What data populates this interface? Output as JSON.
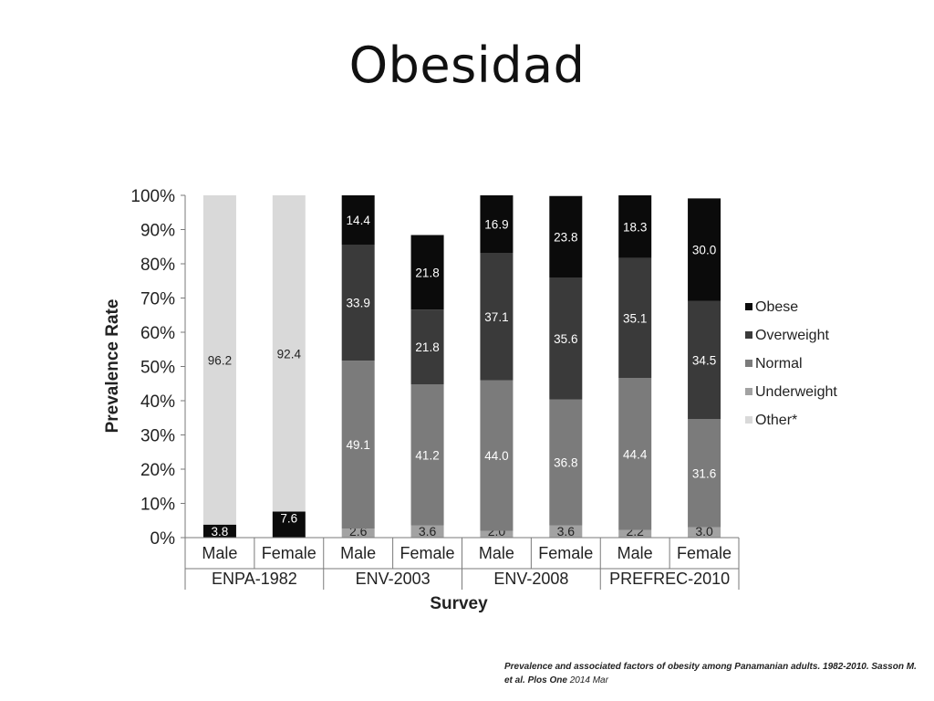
{
  "slide": {
    "title": "Obesidad"
  },
  "citation": {
    "main": "Prevalence and associated factors of obesity among Panamanian adults. 1982-2010. Sasson M. et al.  Plos One",
    "date": "2014 Mar"
  },
  "colors": {
    "obese": "#0b0b0b",
    "overweight": "#3a3a3a",
    "normal": "#7b7b7b",
    "underweight": "#a2a2a2",
    "other": "#d9d9d9",
    "grid": "#bcbcbc"
  },
  "chart_data": {
    "type": "bar",
    "stacked": true,
    "title": "",
    "xlabel": "Survey",
    "ylabel": "Prevalence Rate",
    "ylim": [
      0,
      100
    ],
    "yticks": [
      "0%",
      "10%",
      "20%",
      "30%",
      "40%",
      "50%",
      "60%",
      "70%",
      "80%",
      "90%",
      "100%"
    ],
    "legend_position": "right",
    "categories": [
      "Male",
      "Female",
      "Male",
      "Female",
      "Male",
      "Female",
      "Male",
      "Female"
    ],
    "groups": [
      {
        "label": "ENPA-1982",
        "span": 2
      },
      {
        "label": "ENV-2003",
        "span": 2
      },
      {
        "label": "ENV-2008",
        "span": 2
      },
      {
        "label": "PREFREC-2010",
        "span": 2
      }
    ],
    "series": [
      {
        "name": "Underweight",
        "color_key": "underweight",
        "values": [
          0,
          0,
          2.6,
          3.6,
          2.0,
          3.6,
          2.2,
          3.0
        ],
        "labels": [
          "",
          "",
          "2.6",
          "3.6",
          "2.0",
          "3.6",
          "2.2",
          "3.0"
        ]
      },
      {
        "name": "Normal",
        "color_key": "normal",
        "values": [
          0,
          0,
          49.1,
          41.2,
          44.0,
          36.8,
          44.4,
          31.6
        ],
        "labels": [
          "",
          "",
          "49.1",
          "41.2",
          "44.0",
          "36.8",
          "44.4",
          "31.6"
        ]
      },
      {
        "name": "Overweight",
        "color_key": "overweight",
        "values": [
          0,
          0,
          33.9,
          21.8,
          37.1,
          35.6,
          35.1,
          34.5
        ],
        "labels": [
          "",
          "",
          "33.9",
          "21.8",
          "37.1",
          "35.6",
          "35.1",
          "34.5"
        ]
      },
      {
        "name": "Obese",
        "color_key": "obese",
        "values": [
          3.8,
          7.6,
          14.4,
          21.8,
          16.9,
          23.8,
          18.3,
          30.0
        ],
        "labels": [
          "3.8",
          "7.6",
          "14.4",
          "21.8",
          "16.9",
          "23.8",
          "18.3",
          "30.0"
        ]
      },
      {
        "name": "Other*",
        "color_key": "other",
        "values": [
          96.2,
          92.4,
          0,
          0,
          0,
          0,
          0,
          0
        ],
        "labels": [
          "96.2",
          "92.4",
          "",
          "",
          "",
          "",
          "",
          ""
        ]
      }
    ],
    "legend": [
      "Obese",
      "Overweight",
      "Normal",
      "Underweight",
      "Other*"
    ]
  }
}
